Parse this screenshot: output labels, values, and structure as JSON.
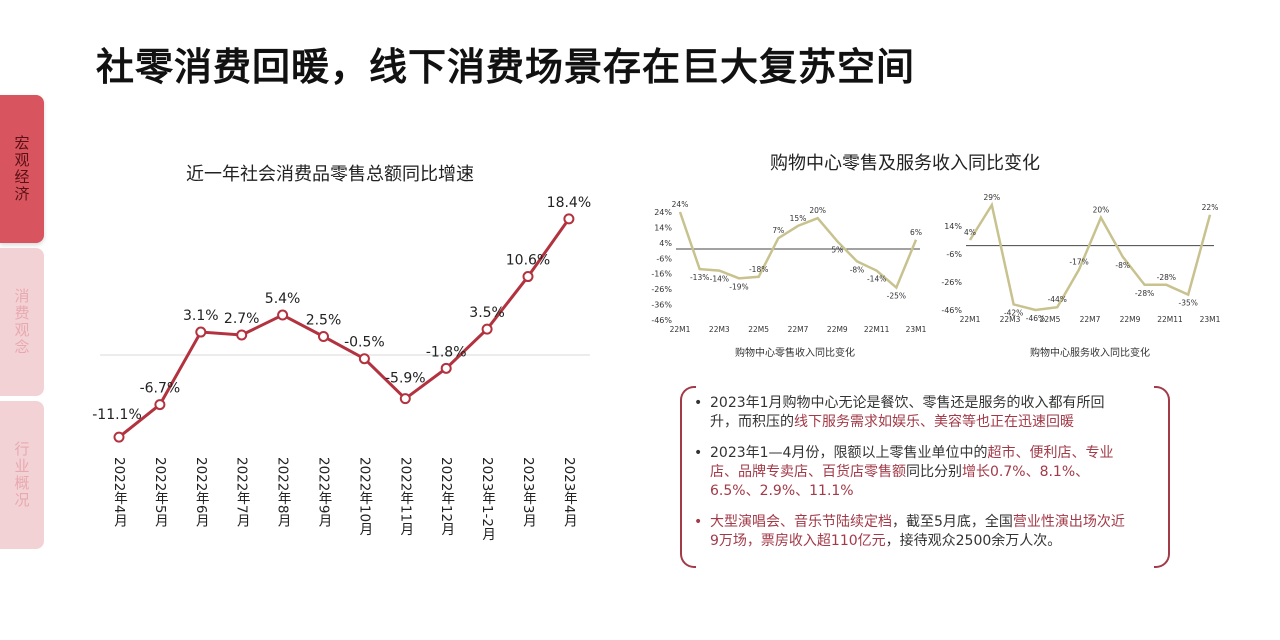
{
  "slide_title": "社零消费回暖，线下消费场景存在巨大复苏空间",
  "side_tabs": [
    {
      "label": "宏观经济",
      "active": true
    },
    {
      "label": "消费观念",
      "active": false
    },
    {
      "label": "行业概况",
      "active": false
    }
  ],
  "colors": {
    "main_line": "#b3323f",
    "mini_line": "#c8c28f",
    "accent": "#a23a48",
    "tab_active": "#d8545e",
    "tab_inactive": "#f3d2d6"
  },
  "chart_data": [
    {
      "type": "line",
      "title": "近一年社会消费品零售总额同比增速",
      "categories": [
        "2022年4月",
        "2022年5月",
        "2022年6月",
        "2022年7月",
        "2022年8月",
        "2022年9月",
        "2022年10月",
        "2022年11月",
        "2022年12月",
        "2023年1-2月",
        "2023年3月",
        "2023年4月"
      ],
      "values": [
        -11.1,
        -6.7,
        3.1,
        2.7,
        5.4,
        2.5,
        -0.5,
        -5.9,
        -1.8,
        3.5,
        10.6,
        18.4
      ],
      "data_labels": [
        "-11.1%",
        "-6.7%",
        "3.1%",
        "2.7%",
        "5.4%",
        "2.5%",
        "-0.5%",
        "-5.9%",
        "-1.8%",
        "3.5%",
        "10.6%",
        "18.4%"
      ],
      "xlabel": "",
      "ylabel": "",
      "grid": false,
      "zero_line": true
    },
    {
      "type": "line",
      "group_title": "购物中心零售及服务收入同比变化",
      "xlabel": "购物中心零售收入同比变化",
      "ylim": [
        -46,
        24
      ],
      "y_ticks": [
        "24%",
        "14%",
        "4%",
        "-6%",
        "-16%",
        "-26%",
        "-36%",
        "-46%"
      ],
      "x_ticks": [
        "22M1",
        "22M3",
        "22M5",
        "22M7",
        "22M9",
        "22M11",
        "23M1"
      ],
      "values": [
        24,
        -13,
        -14,
        -19,
        -18,
        7,
        15,
        20,
        5,
        -8,
        -14,
        -25,
        6
      ],
      "data_labels": [
        "24%",
        "-13%",
        "-14%",
        "-19%",
        "-18%",
        "7%",
        "15%",
        "20%",
        "5%",
        "-8%",
        "-14%",
        "-25%",
        "6%"
      ]
    },
    {
      "type": "line",
      "xlabel": "购物中心服务收入同比变化",
      "ylim": [
        -46,
        24
      ],
      "y_ticks": [
        "14%",
        "-6%",
        "-26%",
        "-46%"
      ],
      "x_ticks": [
        "22M1",
        "22M3",
        "22M5",
        "22M7",
        "22M9",
        "22M11",
        "23M1"
      ],
      "values": [
        4,
        29,
        -42,
        -46,
        -44,
        -17,
        20,
        -8,
        -28,
        -28,
        -35,
        22
      ],
      "data_labels": [
        "4%",
        "29%",
        "-42%",
        "-46%",
        "-44%",
        "-17%",
        "20%",
        "-8%",
        "-28%",
        "-28%",
        "-35%",
        "22%"
      ]
    }
  ],
  "notes": [
    {
      "segments": [
        {
          "text": "2023年1月购物中心无论是餐饮、零售还是服务的收入都有所回升，而积压的",
          "highlight": false
        },
        {
          "text": "线下服务需求如娱乐、美容等也正在迅速回暖",
          "highlight": true
        }
      ]
    },
    {
      "segments": [
        {
          "text": "2023年1—4月份，限额以上零售业单位中的",
          "highlight": false
        },
        {
          "text": "超市、便利店、专业店、品牌专卖店、百货店零售额",
          "highlight": true
        },
        {
          "text": "同比分别",
          "highlight": false
        },
        {
          "text": "增长0.7%、8.1%、6.5%、2.9%、11.1%",
          "highlight": true
        }
      ]
    },
    {
      "segments": [
        {
          "text": "大型演唱会、音乐节陆续定档",
          "highlight": true
        },
        {
          "text": "，截至5月底，全国",
          "highlight": false
        },
        {
          "text": "营业性演出场次近9万场，票房收入超110亿元",
          "highlight": true
        },
        {
          "text": "，接待观众2500余万人次。",
          "highlight": false
        }
      ]
    }
  ]
}
